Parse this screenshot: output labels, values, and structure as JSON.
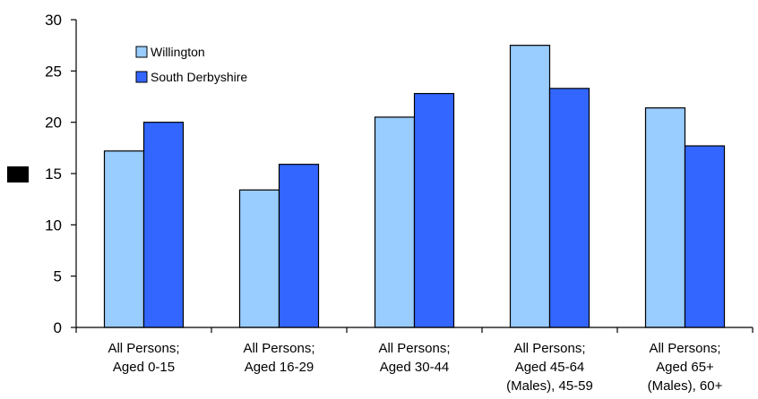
{
  "colors": {
    "series_1": "#99ccff",
    "series_2": "#3366ff",
    "axis": "#000000",
    "y_label_marker": "#000000"
  },
  "chart_data": {
    "type": "bar",
    "title": "",
    "xlabel": "",
    "ylabel": "",
    "ylim": [
      0,
      30
    ],
    "yticks": [
      0,
      5,
      10,
      15,
      20,
      25,
      30
    ],
    "grid": false,
    "legend_position": "top-left",
    "categories": [
      [
        "All Persons;",
        "Aged 0-15"
      ],
      [
        "All Persons;",
        "Aged 16-29"
      ],
      [
        "All Persons;",
        "Aged 30-44"
      ],
      [
        "All Persons;",
        "Aged 45-64",
        "(Males), 45-59"
      ],
      [
        "All Persons;",
        "Aged 65+",
        "(Males), 60+"
      ]
    ],
    "series": [
      {
        "name": "Willington",
        "values": [
          17.2,
          13.4,
          20.5,
          27.5,
          21.4
        ]
      },
      {
        "name": "South Derbyshire",
        "values": [
          20.0,
          15.9,
          22.8,
          23.3,
          17.7
        ]
      }
    ]
  }
}
